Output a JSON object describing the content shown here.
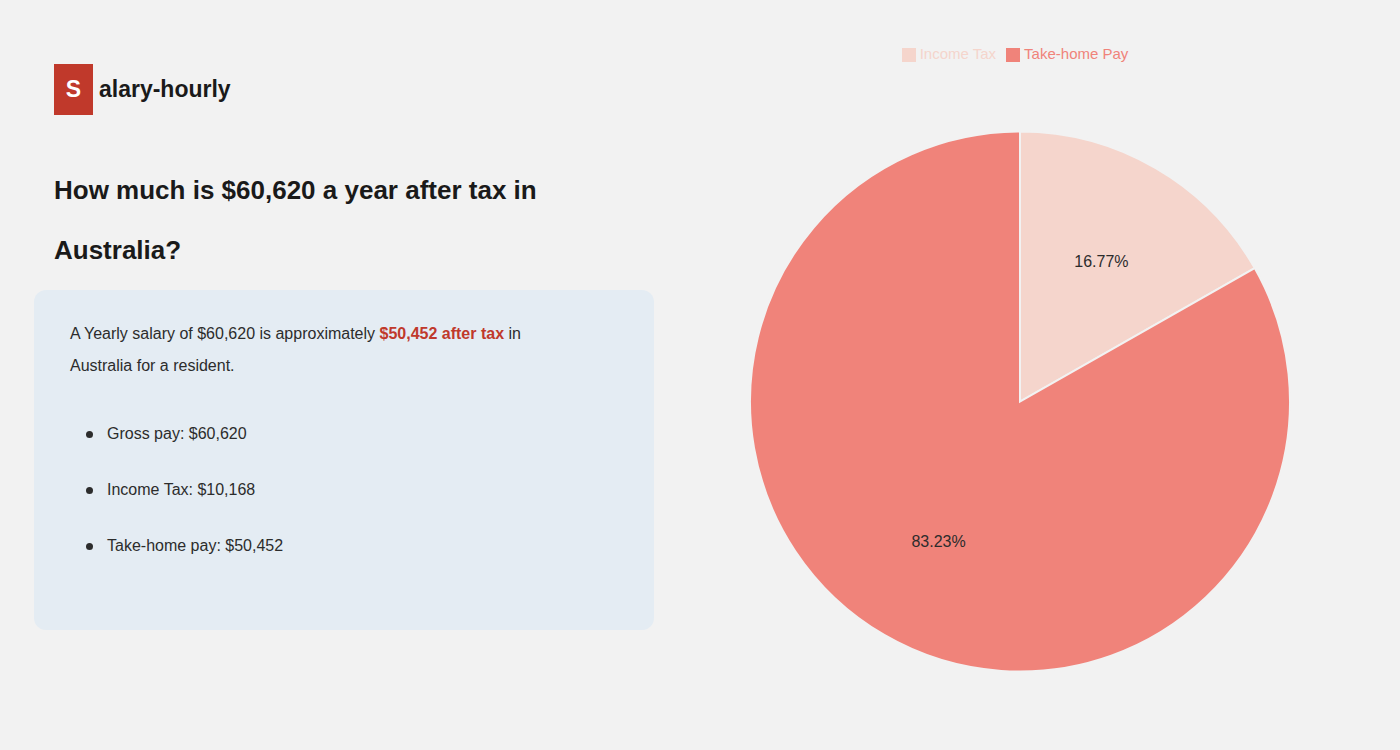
{
  "chart_data": {
    "type": "pie",
    "title": "How much is $60,620 a year after tax in\nAustralia?",
    "categories": [
      "Income Tax",
      "Take-home Pay"
    ],
    "values": [
      16.77,
      83.23
    ],
    "value_labels": [
      "16.77%",
      "83.23%"
    ],
    "colors": [
      "#f5d5cc",
      "#f0837a"
    ],
    "data_labels": true,
    "legend": "top",
    "annotations": {
      "logo": [
        {
          "text": "S",
          "color": "#c0392b"
        },
        {
          "text": "alary-hourly"
        }
      ],
      "box": [
        [
          {
            "text": "A Yearly salary of $60,620 is approximately "
          },
          {
            "text": "$50,452 after tax",
            "color": "#c0392b"
          },
          {
            "text": " in"
          }
        ],
        [
          {
            "text": "Australia for a resident."
          }
        ]
      ],
      "bullets": [
        "Gross pay: $60,620",
        "Income Tax: $10,168",
        "Take-home pay: $50,452"
      ]
    }
  }
}
